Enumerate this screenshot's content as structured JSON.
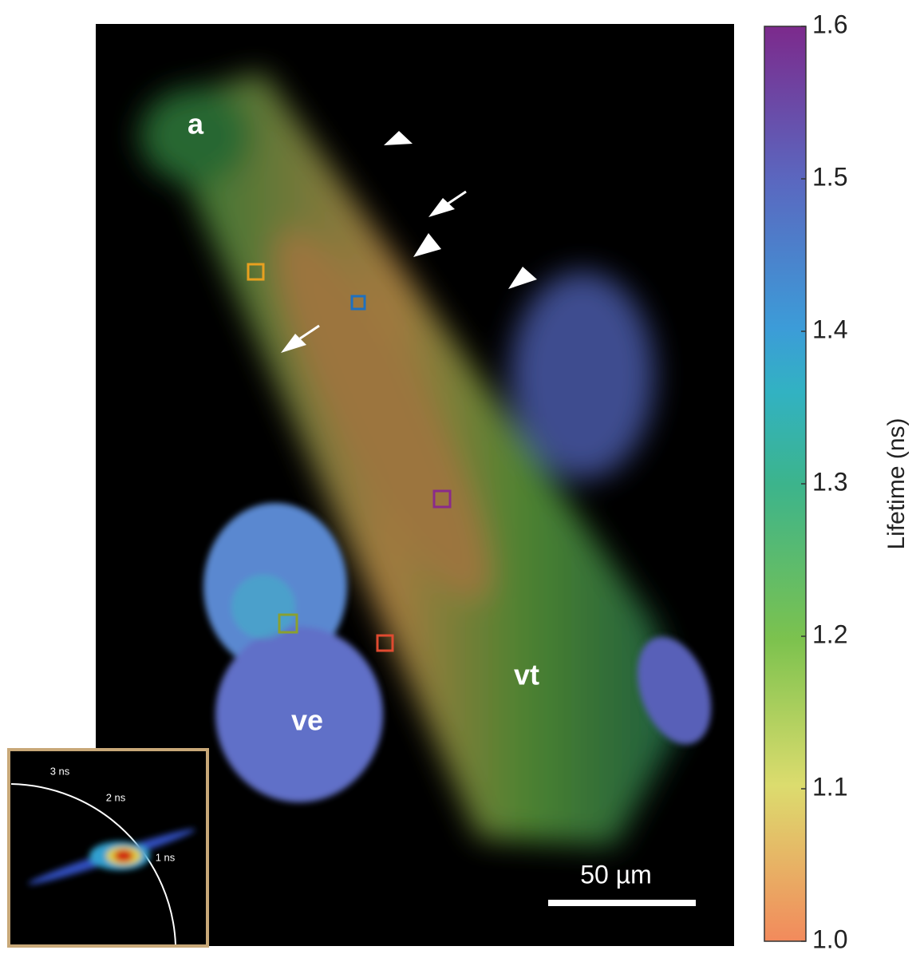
{
  "image": {
    "labels": [
      "a",
      "ve",
      "vt"
    ],
    "scale_bar": "50 µm"
  },
  "colorbar": {
    "title": "Lifetime (ns)",
    "lim": [
      1.0,
      1.6
    ],
    "ticks": [
      {
        "value": 1.0,
        "label": "1.0"
      },
      {
        "value": 1.1,
        "label": "1.1"
      },
      {
        "value": 1.2,
        "label": "1.2"
      },
      {
        "value": 1.3,
        "label": "1.3"
      },
      {
        "value": 1.4,
        "label": "1.4"
      },
      {
        "value": 1.5,
        "label": "1.5"
      },
      {
        "value": 1.6,
        "label": "1.6"
      }
    ]
  },
  "inset": {
    "labels": [
      "3 ns",
      "2 ns",
      "1 ns"
    ]
  }
}
